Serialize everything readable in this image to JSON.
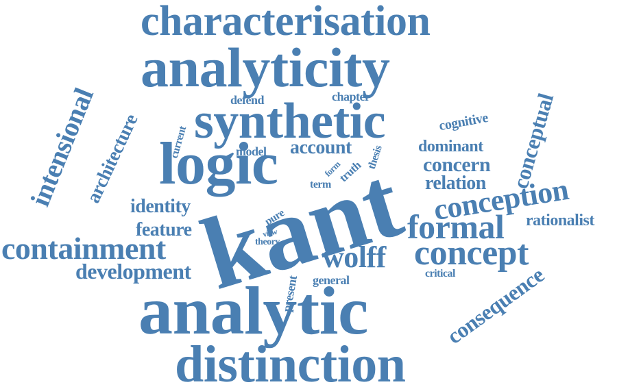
{
  "word_color": "#4a7fb2",
  "background": "#ffffff",
  "words": {
    "kant": "kant",
    "analytic": "analytic",
    "analyticity": "analyticity",
    "characterisation": "characterisation",
    "synthetic": "synthetic",
    "logic": "logic",
    "distinction": "distinction",
    "containment": "containment",
    "intensional": "intensional",
    "architecture": "architecture",
    "conception": "conception",
    "concept": "concept",
    "formal": "formal",
    "wolff": "wolff",
    "consequence": "consequence",
    "conceptual": "conceptual",
    "development": "development",
    "identity": "identity",
    "feature": "feature",
    "account": "account",
    "dominant": "dominant",
    "concern": "concern",
    "relation": "relation",
    "rationalist": "rationalist",
    "cognitive": "cognitive",
    "chapter": "chapter",
    "defend": "defend",
    "current": "current",
    "model": "model",
    "thesis": "thesis",
    "truth": "truth",
    "form": "form",
    "term": "term",
    "pure": "pure",
    "view": "view",
    "theory": "theory",
    "present": "present",
    "general": "general",
    "critical": "critical"
  }
}
